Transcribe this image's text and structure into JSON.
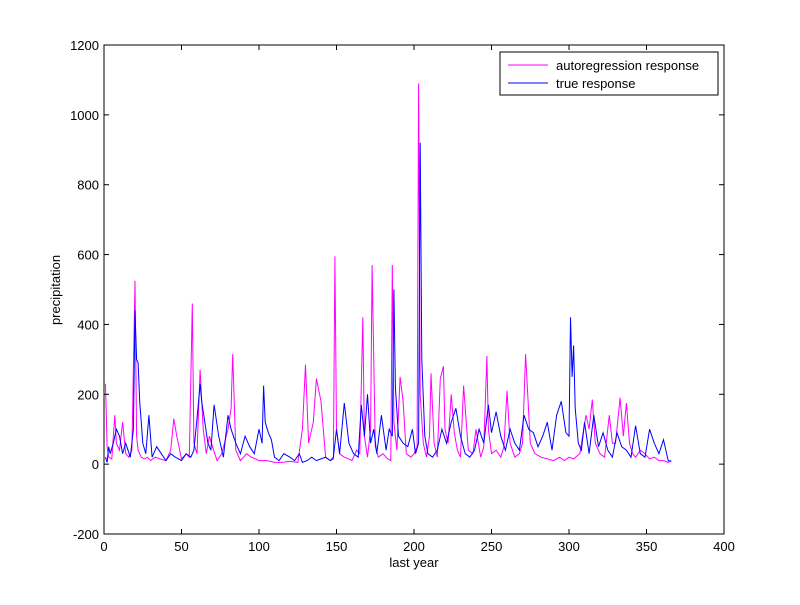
{
  "chart_data": {
    "type": "line",
    "xlabel": "last year",
    "ylabel": "precipitation",
    "xlim": [
      0,
      400
    ],
    "ylim": [
      -200,
      1200
    ],
    "xticks": [
      0,
      50,
      100,
      150,
      200,
      250,
      300,
      350,
      400
    ],
    "yticks": [
      -200,
      0,
      200,
      400,
      600,
      800,
      1000,
      1200
    ],
    "grid": false,
    "legend_position": "top-right",
    "series": [
      {
        "name": "autoregression response",
        "color": "#ff00ff",
        "x": [
          1,
          2,
          3,
          5,
          7,
          8,
          10,
          12,
          14,
          16,
          18,
          20,
          21,
          22,
          24,
          26,
          28,
          30,
          33,
          36,
          40,
          43,
          45,
          47,
          50,
          53,
          55,
          57,
          58,
          60,
          62,
          64,
          66,
          68,
          70,
          73,
          76,
          80,
          82,
          83,
          85,
          88,
          92,
          95,
          98,
          100,
          105,
          110,
          115,
          120,
          125,
          128,
          130,
          132,
          135,
          137,
          140,
          143,
          146,
          148,
          149,
          150,
          152,
          155,
          158,
          160,
          163,
          165,
          167,
          168,
          170,
          172,
          173,
          175,
          177,
          180,
          183,
          185,
          186,
          187,
          189,
          191,
          193,
          195,
          198,
          200,
          202,
          203,
          204,
          206,
          208,
          210,
          211,
          213,
          215,
          217,
          219,
          220,
          222,
          224,
          226,
          228,
          230,
          232,
          235,
          238,
          240,
          243,
          245,
          247,
          248,
          250,
          253,
          256,
          258,
          260,
          262,
          265,
          268,
          270,
          272,
          275,
          278,
          282,
          286,
          290,
          294,
          297,
          300,
          303,
          307,
          311,
          313,
          315,
          317,
          320,
          323,
          326,
          328,
          330,
          333,
          335,
          337,
          339,
          341,
          343,
          346,
          349,
          352,
          355,
          358,
          361,
          364,
          366
        ],
        "y": [
          230,
          50,
          20,
          15,
          140,
          60,
          40,
          120,
          30,
          20,
          40,
          525,
          80,
          40,
          20,
          15,
          20,
          10,
          20,
          15,
          10,
          40,
          130,
          80,
          15,
          30,
          20,
          460,
          60,
          30,
          270,
          100,
          30,
          80,
          50,
          10,
          30,
          100,
          160,
          315,
          40,
          10,
          30,
          20,
          15,
          10,
          10,
          5,
          5,
          8,
          5,
          100,
          285,
          60,
          120,
          245,
          180,
          20,
          10,
          15,
          595,
          100,
          30,
          20,
          15,
          10,
          40,
          30,
          420,
          80,
          20,
          100,
          570,
          50,
          20,
          30,
          15,
          10,
          570,
          120,
          40,
          250,
          180,
          30,
          20,
          30,
          50,
          1090,
          200,
          60,
          20,
          80,
          260,
          60,
          20,
          245,
          280,
          100,
          60,
          200,
          90,
          40,
          20,
          225,
          40,
          30,
          100,
          20,
          50,
          310,
          100,
          30,
          40,
          20,
          50,
          210,
          60,
          20,
          30,
          60,
          315,
          60,
          30,
          20,
          15,
          10,
          20,
          10,
          20,
          15,
          30,
          140,
          100,
          185,
          60,
          30,
          20,
          140,
          60,
          60,
          190,
          80,
          175,
          60,
          30,
          20,
          40,
          30,
          15,
          20,
          10,
          10,
          5,
          10
        ]
      },
      {
        "name": "true response",
        "color": "#0000ff",
        "x": [
          1,
          2,
          3,
          4,
          6,
          8,
          10,
          12,
          14,
          17,
          19,
          20,
          21,
          22,
          23,
          25,
          27,
          29,
          31,
          34,
          37,
          40,
          43,
          46,
          50,
          53,
          56,
          58,
          60,
          62,
          63,
          65,
          67,
          69,
          71,
          74,
          77,
          80,
          82,
          85,
          88,
          91,
          94,
          97,
          100,
          102,
          103,
          104,
          106,
          108,
          110,
          113,
          116,
          120,
          123,
          126,
          128,
          131,
          134,
          137,
          140,
          143,
          146,
          148,
          150,
          152,
          155,
          158,
          161,
          164,
          166,
          168,
          170,
          172,
          174,
          176,
          179,
          182,
          184,
          186,
          187,
          188,
          190,
          193,
          196,
          199,
          201,
          203,
          204,
          205,
          207,
          209,
          212,
          215,
          218,
          221,
          224,
          227,
          230,
          233,
          236,
          239,
          242,
          245,
          248,
          250,
          253,
          256,
          259,
          262,
          265,
          268,
          271,
          274,
          277,
          280,
          283,
          286,
          289,
          292,
          295,
          298,
          300,
          301,
          302,
          303,
          304,
          306,
          308,
          310,
          313,
          316,
          319,
          322,
          325,
          328,
          331,
          334,
          337,
          340,
          343,
          346,
          349,
          352,
          355,
          358,
          361,
          364,
          366
        ],
        "y": [
          20,
          5,
          50,
          30,
          60,
          100,
          80,
          30,
          60,
          20,
          100,
          440,
          300,
          290,
          180,
          60,
          30,
          140,
          20,
          50,
          30,
          10,
          30,
          20,
          10,
          30,
          20,
          40,
          130,
          230,
          180,
          120,
          60,
          40,
          170,
          80,
          20,
          140,
          100,
          60,
          30,
          80,
          50,
          30,
          100,
          60,
          225,
          120,
          90,
          70,
          20,
          10,
          30,
          20,
          10,
          30,
          5,
          10,
          20,
          10,
          15,
          20,
          10,
          20,
          100,
          30,
          175,
          60,
          30,
          20,
          170,
          80,
          200,
          60,
          100,
          30,
          140,
          40,
          100,
          80,
          500,
          220,
          80,
          60,
          50,
          100,
          30,
          60,
          920,
          300,
          80,
          30,
          20,
          40,
          100,
          60,
          120,
          160,
          80,
          30,
          20,
          40,
          100,
          60,
          170,
          90,
          150,
          80,
          40,
          100,
          60,
          40,
          140,
          100,
          90,
          50,
          80,
          120,
          40,
          140,
          180,
          90,
          80,
          420,
          250,
          340,
          160,
          60,
          40,
          120,
          30,
          140,
          50,
          90,
          40,
          20,
          90,
          50,
          40,
          20,
          110,
          30,
          20,
          100,
          60,
          30,
          70,
          10,
          8
        ]
      }
    ]
  }
}
